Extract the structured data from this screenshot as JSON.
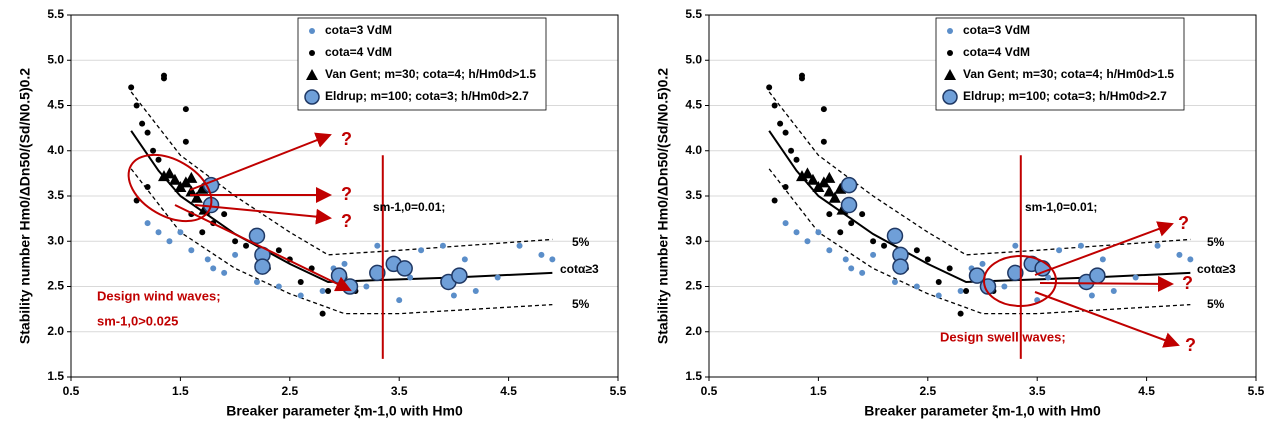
{
  "chart_data": [
    {
      "type": "scatter",
      "x_label": "Breaker parameter ξm-1,0 with Hm0",
      "y_label": "Stability number Hm0/ΔDn50/(Sd/N0.5)0.2",
      "xlim": [
        0.5,
        5.5
      ],
      "xticks": [
        0.5,
        1.5,
        2.5,
        3.5,
        4.5,
        5.5
      ],
      "ylim": [
        1.5,
        5.5
      ],
      "yticks": [
        1.5,
        {
          "value": 2,
          "label": "2.0"
        },
        2.5,
        {
          "value": 3,
          "label": "3.0"
        },
        3.5,
        {
          "value": 4,
          "label": "4.0"
        },
        4.5,
        {
          "value": 5,
          "label": "5.0"
        },
        5.5
      ],
      "grid": true,
      "legend": "upper right",
      "series": [
        {
          "name": "cota=3 VdM",
          "marker": "dot",
          "color": "#5b8ec9",
          "x": [
            1.2,
            1.3,
            1.4,
            1.5,
            1.6,
            1.75,
            1.8,
            1.9,
            2.0,
            2.2,
            2.4,
            2.6,
            2.8,
            2.9,
            3.0,
            3.2,
            3.5,
            3.6,
            3.7,
            3.9,
            4.1,
            4.2,
            4.4,
            4.6,
            4.8,
            4.9,
            3.3,
            4.0
          ],
          "values": [
            3.2,
            3.1,
            3.0,
            3.1,
            2.9,
            2.8,
            2.7,
            2.65,
            2.85,
            2.55,
            2.5,
            2.4,
            2.45,
            2.7,
            2.75,
            2.5,
            2.35,
            2.6,
            2.9,
            2.95,
            2.8,
            2.45,
            2.6,
            2.95,
            2.85,
            2.8,
            2.95,
            2.4
          ]
        },
        {
          "name": "cota=4 VdM",
          "marker": "dot",
          "color": "#000000",
          "x": [
            1.05,
            1.1,
            1.15,
            1.2,
            1.25,
            1.35,
            1.35,
            1.55,
            1.55,
            1.1,
            1.2,
            1.3,
            1.8,
            1.9,
            2.0,
            2.1,
            2.3,
            2.5,
            2.6,
            2.8,
            2.85,
            3.0,
            3.1,
            2.7,
            1.7,
            1.6,
            2.4
          ],
          "values": [
            4.7,
            4.5,
            4.3,
            4.2,
            4.0,
            4.8,
            4.83,
            4.46,
            4.1,
            3.45,
            3.6,
            3.9,
            3.2,
            3.3,
            3.0,
            2.95,
            2.7,
            2.8,
            2.55,
            2.2,
            2.45,
            2.6,
            2.45,
            2.7,
            3.1,
            3.3,
            2.9
          ]
        },
        {
          "name": "Van Gent; m=30; cota=4; h/Hm0d>1.5",
          "marker": "triangle",
          "color": "#000000",
          "x": [
            1.35,
            1.4,
            1.45,
            1.55,
            1.6,
            1.65,
            1.7,
            1.72,
            1.6,
            1.5
          ],
          "values": [
            3.72,
            3.75,
            3.68,
            3.65,
            3.55,
            3.48,
            3.58,
            3.35,
            3.7,
            3.6
          ]
        },
        {
          "name": "Eldrup; m=100; cota=3; h/Hm0d>2.7",
          "marker": "circle",
          "color": "#6f9fd8",
          "x": [
            1.78,
            1.78,
            2.2,
            2.25,
            2.25,
            2.95,
            3.05,
            3.3,
            3.45,
            3.55,
            3.95,
            4.05
          ],
          "values": [
            3.62,
            3.4,
            3.06,
            2.85,
            2.72,
            2.62,
            2.5,
            2.65,
            2.75,
            2.7,
            2.55,
            2.62
          ]
        }
      ],
      "curves": [
        {
          "style": "solid",
          "x": [
            1.05,
            1.3,
            1.5,
            2.0,
            2.5,
            2.85,
            3.3,
            4.0,
            4.9
          ],
          "values": [
            4.22,
            3.78,
            3.5,
            3.08,
            2.75,
            2.55,
            2.57,
            2.6,
            2.65
          ]
        },
        {
          "style": "dashed",
          "x": [
            1.05,
            1.5,
            2.0,
            2.5,
            2.85,
            3.5,
            4.9
          ],
          "values": [
            4.65,
            3.95,
            3.5,
            3.1,
            2.85,
            2.9,
            3.02
          ]
        },
        {
          "style": "dashed",
          "x": [
            1.05,
            1.5,
            2.0,
            2.5,
            3.0,
            3.5,
            4.9
          ],
          "values": [
            3.8,
            3.1,
            2.7,
            2.42,
            2.2,
            2.2,
            2.3
          ]
        }
      ],
      "vline": {
        "x": 3.35,
        "y": [
          1.7,
          3.95
        ],
        "color": "#c00000"
      },
      "annotations": [
        "?",
        "?",
        "?",
        "Design wind waves;",
        "sm-1,0>0.025",
        "sm-1,0=0.01;",
        "5%",
        "cotα≥3",
        "5%"
      ]
    },
    {
      "type": "scatter",
      "x_label": "Breaker parameter ξm-1,0 with Hm0",
      "y_label": "Stability number Hm0/ΔDn50/(Sd/N0.5)0.2",
      "xlim": [
        0.5,
        5.5
      ],
      "xticks": [
        0.5,
        1.5,
        2.5,
        3.5,
        4.5,
        5.5
      ],
      "ylim": [
        1.5,
        5.5
      ],
      "yticks": [
        1.5,
        {
          "value": 2,
          "label": "2.0"
        },
        2.5,
        {
          "value": 3,
          "label": "3.0"
        },
        3.5,
        {
          "value": 4,
          "label": "4.0"
        },
        4.5,
        {
          "value": 5,
          "label": "5.0"
        },
        5.5
      ],
      "grid": true,
      "legend": "upper right",
      "series": [
        {
          "name": "cota=3 VdM",
          "marker": "dot",
          "color": "#5b8ec9",
          "x": [
            1.2,
            1.3,
            1.4,
            1.5,
            1.6,
            1.75,
            1.8,
            1.9,
            2.0,
            2.2,
            2.4,
            2.6,
            2.8,
            2.9,
            3.0,
            3.2,
            3.5,
            3.6,
            3.7,
            3.9,
            4.1,
            4.2,
            4.4,
            4.6,
            4.8,
            4.9,
            3.3,
            4.0
          ],
          "values": [
            3.2,
            3.1,
            3.0,
            3.1,
            2.9,
            2.8,
            2.7,
            2.65,
            2.85,
            2.55,
            2.5,
            2.4,
            2.45,
            2.7,
            2.75,
            2.5,
            2.35,
            2.6,
            2.9,
            2.95,
            2.8,
            2.45,
            2.6,
            2.95,
            2.85,
            2.8,
            2.95,
            2.4
          ]
        },
        {
          "name": "cota=4 VdM",
          "marker": "dot",
          "color": "#000000",
          "x": [
            1.05,
            1.1,
            1.15,
            1.2,
            1.25,
            1.35,
            1.35,
            1.55,
            1.55,
            1.1,
            1.2,
            1.3,
            1.8,
            1.9,
            2.0,
            2.1,
            2.3,
            2.5,
            2.6,
            2.8,
            2.85,
            3.0,
            3.1,
            2.7,
            1.7,
            1.6,
            2.4
          ],
          "values": [
            4.7,
            4.5,
            4.3,
            4.2,
            4.0,
            4.8,
            4.83,
            4.46,
            4.1,
            3.45,
            3.6,
            3.9,
            3.2,
            3.3,
            3.0,
            2.95,
            2.7,
            2.8,
            2.55,
            2.2,
            2.45,
            2.6,
            2.45,
            2.7,
            3.1,
            3.3,
            2.9
          ]
        },
        {
          "name": "Van Gent; m=30; cota=4; h/Hm0d>1.5",
          "marker": "triangle",
          "color": "#000000",
          "x": [
            1.35,
            1.4,
            1.45,
            1.55,
            1.6,
            1.65,
            1.7,
            1.72,
            1.6,
            1.5
          ],
          "values": [
            3.72,
            3.75,
            3.68,
            3.65,
            3.55,
            3.48,
            3.58,
            3.35,
            3.7,
            3.6
          ]
        },
        {
          "name": "Eldrup; m=100; cota=3; h/Hm0d>2.7",
          "marker": "circle",
          "color": "#6f9fd8",
          "x": [
            1.78,
            1.78,
            2.2,
            2.25,
            2.25,
            2.95,
            3.05,
            3.3,
            3.45,
            3.55,
            3.95,
            4.05
          ],
          "values": [
            3.62,
            3.4,
            3.06,
            2.85,
            2.72,
            2.62,
            2.5,
            2.65,
            2.75,
            2.7,
            2.55,
            2.62
          ]
        }
      ],
      "curves": [
        {
          "style": "solid",
          "x": [
            1.05,
            1.3,
            1.5,
            2.0,
            2.5,
            2.85,
            3.3,
            4.0,
            4.9
          ],
          "values": [
            4.22,
            3.78,
            3.5,
            3.08,
            2.75,
            2.55,
            2.57,
            2.6,
            2.65
          ]
        },
        {
          "style": "dashed",
          "x": [
            1.05,
            1.5,
            2.0,
            2.5,
            2.85,
            3.5,
            4.9
          ],
          "values": [
            4.65,
            3.95,
            3.5,
            3.1,
            2.85,
            2.9,
            3.02
          ]
        },
        {
          "style": "dashed",
          "x": [
            1.05,
            1.5,
            2.0,
            2.5,
            3.0,
            3.5,
            4.9
          ],
          "values": [
            3.8,
            3.1,
            2.7,
            2.42,
            2.2,
            2.2,
            2.3
          ]
        }
      ],
      "vline": {
        "x": 3.35,
        "y": [
          1.7,
          3.95
        ],
        "color": "#c00000"
      },
      "annotations": [
        "?",
        "?",
        "?",
        "Design swell waves;",
        "sm-1,0=0.01;",
        "5%",
        "cotα≥3",
        "5%"
      ]
    }
  ]
}
